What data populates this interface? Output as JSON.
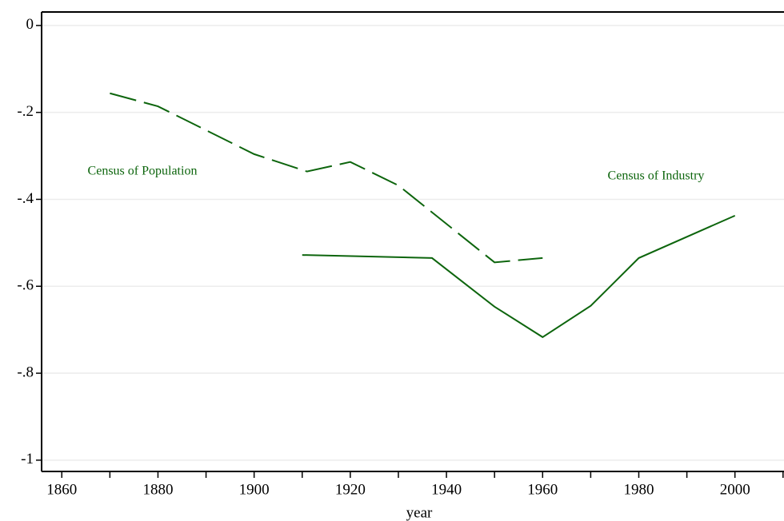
{
  "chart_data": {
    "type": "line",
    "x_label": "year",
    "xlim": [
      1855.8,
      2010.2
    ],
    "ylim": [
      -1.026,
      0.031
    ],
    "xticks": [
      1860,
      1880,
      1900,
      1920,
      1940,
      1960,
      1980,
      2000
    ],
    "x_minor_ticks": [
      1870,
      1890,
      1910,
      1930,
      1950,
      1970,
      1990,
      2010
    ],
    "yticks": [
      {
        "value": 0,
        "label": "0"
      },
      {
        "value": -0.2,
        "label": "-.2"
      },
      {
        "value": -0.4,
        "label": "-.4"
      },
      {
        "value": -0.6,
        "label": "-.6"
      },
      {
        "value": -0.8,
        "label": "-.8"
      },
      {
        "value": -1,
        "label": "-1"
      }
    ],
    "grid": true,
    "series": [
      {
        "name": "Census of Population",
        "color": "#0d650d",
        "dashed": true,
        "x": [
          1870,
          1880,
          1900,
          1911,
          1920,
          1930,
          1950,
          1960
        ],
        "values": [
          -0.156,
          -0.186,
          -0.296,
          -0.336,
          -0.314,
          -0.368,
          -0.545,
          -0.535
        ]
      },
      {
        "name": "Census of Industry",
        "color": "#0d650d",
        "dashed": false,
        "x": [
          1910,
          1937,
          1950,
          1960,
          1970,
          1980,
          2000
        ],
        "values": [
          -0.528,
          -0.535,
          -0.647,
          -0.717,
          -0.645,
          -0.535,
          -0.4375
        ]
      }
    ]
  }
}
